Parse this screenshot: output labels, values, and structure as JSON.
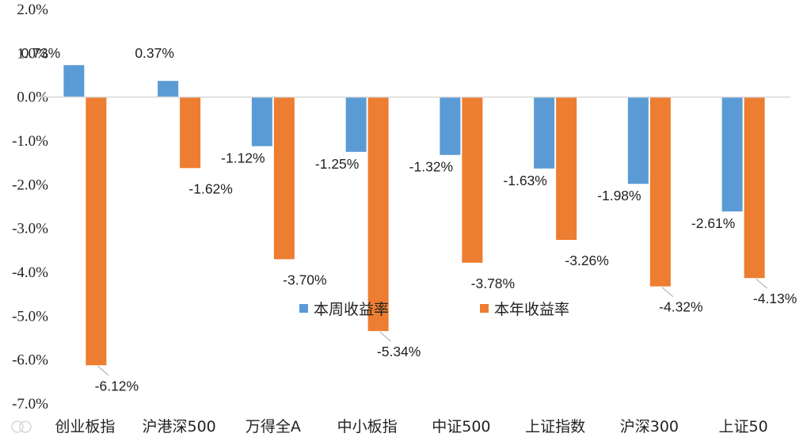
{
  "chart_data": {
    "type": "bar",
    "categories": [
      "创业板指",
      "沪港深500",
      "万得全A",
      "中小板指",
      "中证500",
      "上证指数",
      "沪深300",
      "上证50"
    ],
    "series": [
      {
        "name": "本周收益率",
        "color": "#5b9bd5",
        "values": [
          0.73,
          0.37,
          -1.12,
          -1.25,
          -1.32,
          -1.63,
          -1.98,
          -2.61
        ],
        "labels": [
          "0.73%",
          "0.37%",
          "-1.12%",
          "-1.25%",
          "-1.32%",
          "-1.63%",
          "-1.98%",
          "-2.61%"
        ]
      },
      {
        "name": "本年收益率",
        "color": "#ed7d31",
        "values": [
          -6.12,
          -1.62,
          -3.7,
          -5.34,
          -3.78,
          -3.26,
          -4.32,
          -4.13
        ],
        "labels": [
          "-6.12%",
          "-1.62%",
          "-3.70%",
          "-5.34%",
          "-3.78%",
          "-3.26%",
          "-4.32%",
          "-4.13%"
        ]
      }
    ],
    "ylim": [
      -7.0,
      2.0
    ],
    "yticks": [
      "2.0%",
      "1.0%",
      "0.0%",
      "-1.0%",
      "-2.0%",
      "-3.0%",
      "-4.0%",
      "-5.0%",
      "-6.0%",
      "-7.0%"
    ],
    "legend": {
      "position": "inside-center",
      "entries": [
        "本周收益率",
        "本年收益率"
      ]
    },
    "grid": false,
    "axis_color": "#d9d9d9"
  }
}
